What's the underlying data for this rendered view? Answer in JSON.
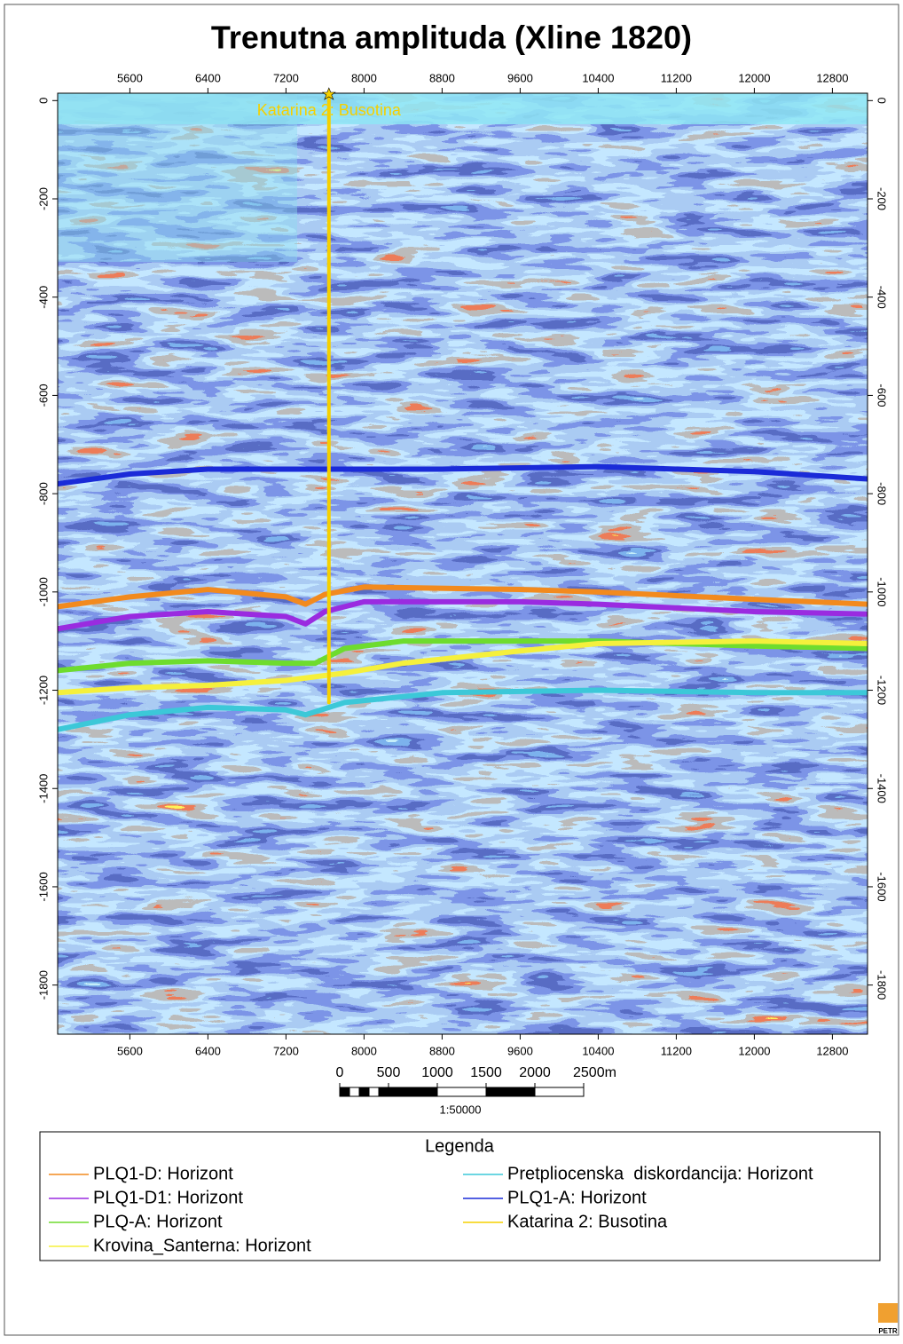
{
  "chart_data": {
    "type": "line",
    "title": "Trenutna amplituda (Xline 1820)",
    "xlim": [
      4860,
      13160
    ],
    "ylim": [
      15,
      -1900
    ],
    "xticks": [
      5600,
      6400,
      7200,
      8000,
      8800,
      9600,
      10400,
      11200,
      12000,
      12800
    ],
    "yticks": [
      0,
      -200,
      -400,
      -600,
      -800,
      -1000,
      -1200,
      -1400,
      -1600,
      -1800
    ],
    "legend_title": "Legenda",
    "series": [
      {
        "name": "PLQ1-D: Horizont",
        "color": "#f28a1e",
        "x": [
          4860,
          5600,
          6400,
          7200,
          7400,
          7600,
          8000,
          9600,
          10400,
          12000,
          13160
        ],
        "values": [
          -1030,
          -1010,
          -995,
          -1010,
          -1025,
          -1005,
          -990,
          -995,
          -1000,
          -1015,
          -1025
        ]
      },
      {
        "name": "PLQ1-D1: Horizont",
        "color": "#9a2be0",
        "x": [
          4860,
          5600,
          6400,
          7200,
          7400,
          7600,
          8000,
          9600,
          10400,
          12000,
          13160
        ],
        "values": [
          -1075,
          -1050,
          -1040,
          -1050,
          -1065,
          -1040,
          -1020,
          -1020,
          -1025,
          -1040,
          -1045
        ]
      },
      {
        "name": "PLQ-A: Horizont",
        "color": "#6edc2e",
        "x": [
          4860,
          5600,
          6400,
          7200,
          7500,
          7800,
          8400,
          10400,
          12000,
          13160
        ],
        "values": [
          -1160,
          -1145,
          -1140,
          -1145,
          -1145,
          -1115,
          -1100,
          -1100,
          -1110,
          -1115
        ]
      },
      {
        "name": "Krovina_Santerna: Horizont",
        "color": "#f5f03c",
        "x": [
          4860,
          5600,
          6400,
          7200,
          7800,
          8400,
          9600,
          10400,
          12000,
          13160
        ],
        "values": [
          -1205,
          -1195,
          -1190,
          -1180,
          -1165,
          -1145,
          -1120,
          -1105,
          -1100,
          -1105
        ]
      },
      {
        "name": "Pretpliocenska  diskordancija: Horizont",
        "color": "#3cc8d8",
        "x": [
          4860,
          5600,
          6400,
          7200,
          7400,
          7800,
          8800,
          10400,
          12000,
          13160
        ],
        "values": [
          -1280,
          -1250,
          -1235,
          -1240,
          -1250,
          -1225,
          -1205,
          -1200,
          -1205,
          -1205
        ]
      },
      {
        "name": "PLQ1-A: Horizont",
        "color": "#1a2bd8",
        "x": [
          4860,
          5600,
          6400,
          7600,
          8800,
          10400,
          12000,
          13160
        ],
        "values": [
          -780,
          -760,
          -750,
          -750,
          -750,
          -745,
          -755,
          -770
        ]
      },
      {
        "name": "Katarina 2: Busotina",
        "color": "#f5d000",
        "x": [
          7640,
          7640
        ],
        "values": [
          15,
          -1225
        ]
      }
    ],
    "scale_bar": {
      "ticks": [
        0,
        500,
        1000,
        1500,
        2000,
        {
          "value": 2500,
          "label": "2500m"
        }
      ],
      "ratio": "1:50000"
    },
    "logo": "PETR"
  }
}
